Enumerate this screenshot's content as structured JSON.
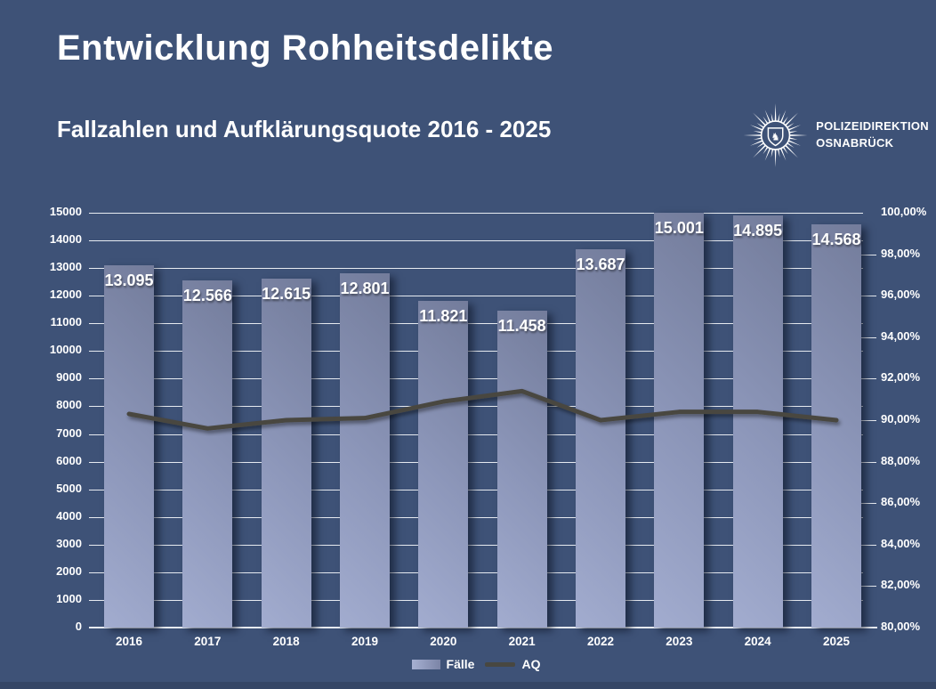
{
  "header": {
    "title": "Entwicklung Rohheitsdelikte",
    "subtitle": "Fallzahlen und Aufklärungsquote 2016 - 2025"
  },
  "logo": {
    "org_line1": "POLIZEIDIREKTION",
    "org_line2": "OSNABRÜCK"
  },
  "chart_data": {
    "type": "bar+line",
    "title": "Entwicklung Rohheitsdelikte",
    "subtitle": "Fallzahlen und Aufklärungsquote 2016 - 2025",
    "categories": [
      "2016",
      "2017",
      "2018",
      "2019",
      "2020",
      "2021",
      "2022",
      "2023",
      "2024",
      "2025"
    ],
    "series": [
      {
        "name": "Fälle",
        "type": "bar",
        "axis": "left",
        "values": [
          13095,
          12566,
          12615,
          12801,
          11821,
          11458,
          13687,
          15001,
          14895,
          14568
        ],
        "value_labels": [
          "13.095",
          "12.566",
          "12.615",
          "12.801",
          "11.821",
          "11.458",
          "13.687",
          "15.001",
          "14.895",
          "14.568"
        ]
      },
      {
        "name": "AQ",
        "type": "line",
        "axis": "right",
        "values_percent": [
          90.3,
          89.6,
          90.0,
          90.1,
          90.9,
          91.4,
          90.0,
          90.4,
          90.4,
          90.0
        ]
      }
    ],
    "left_axis": {
      "min": 0,
      "max": 15000,
      "step": 1000,
      "tick_labels": [
        "0",
        "1000",
        "2000",
        "3000",
        "4000",
        "5000",
        "6000",
        "7000",
        "8000",
        "9000",
        "10000",
        "11000",
        "12000",
        "13000",
        "14000",
        "15000"
      ]
    },
    "right_axis": {
      "min": 80,
      "max": 100,
      "step": 2,
      "tick_labels": [
        "80,00%",
        "82,00%",
        "84,00%",
        "86,00%",
        "88,00%",
        "90,00%",
        "92,00%",
        "94,00%",
        "96,00%",
        "98,00%",
        "100,00%"
      ]
    },
    "legend": [
      {
        "label": "Fälle",
        "swatch": "bar"
      },
      {
        "label": "AQ",
        "swatch": "line"
      }
    ],
    "grid": "horizontal",
    "legend_position": "bottom-center",
    "colors": {
      "background": "#3E5277",
      "bar_light": "#a2accf",
      "bar_dark": "#737c9b",
      "line": "#484741",
      "gridline": "#e7ebf1",
      "text": "#ffffff"
    }
  }
}
